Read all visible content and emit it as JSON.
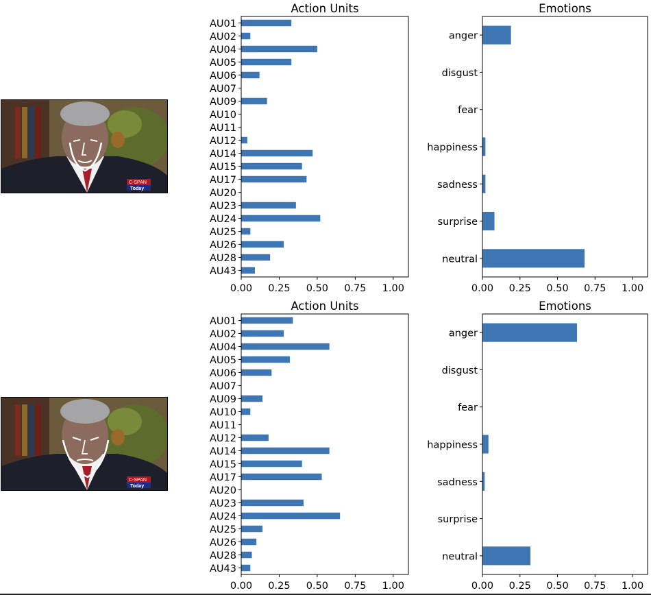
{
  "style": {
    "bar_color": "#3d76b3",
    "axis_color": "#000000"
  },
  "frames": [
    {
      "overlay_text": "C-SPAN",
      "overlay_subtext": "Today"
    },
    {
      "overlay_text": "C-SPAN",
      "overlay_subtext": "Today"
    }
  ],
  "chart_data": [
    {
      "type": "bar",
      "orientation": "horizontal",
      "title": "Action Units",
      "categories": [
        "AU01",
        "AU02",
        "AU04",
        "AU05",
        "AU06",
        "AU07",
        "AU09",
        "AU10",
        "AU11",
        "AU12",
        "AU14",
        "AU15",
        "AU17",
        "AU20",
        "AU23",
        "AU24",
        "AU25",
        "AU26",
        "AU28",
        "AU43"
      ],
      "values": [
        0.33,
        0.06,
        0.5,
        0.33,
        0.12,
        0.0,
        0.17,
        0.0,
        0.0,
        0.04,
        0.47,
        0.4,
        0.43,
        0.0,
        0.36,
        0.52,
        0.06,
        0.28,
        0.19,
        0.09
      ],
      "xlim": [
        0,
        1.1
      ],
      "xticks": [
        "0.00",
        "0.25",
        "0.50",
        "0.75",
        "1.00"
      ],
      "xlabel": "",
      "ylabel": "",
      "grid": false
    },
    {
      "type": "bar",
      "orientation": "horizontal",
      "title": "Emotions",
      "categories": [
        "anger",
        "disgust",
        "fear",
        "happiness",
        "sadness",
        "surprise",
        "neutral"
      ],
      "values": [
        0.19,
        0.0,
        0.0,
        0.02,
        0.02,
        0.08,
        0.68
      ],
      "xlim": [
        0,
        1.1
      ],
      "xticks": [
        "0.00",
        "0.25",
        "0.50",
        "0.75",
        "1.00"
      ],
      "xlabel": "",
      "ylabel": "",
      "grid": false
    },
    {
      "type": "bar",
      "orientation": "horizontal",
      "title": "Action Units",
      "categories": [
        "AU01",
        "AU02",
        "AU04",
        "AU05",
        "AU06",
        "AU07",
        "AU09",
        "AU10",
        "AU11",
        "AU12",
        "AU14",
        "AU15",
        "AU17",
        "AU20",
        "AU23",
        "AU24",
        "AU25",
        "AU26",
        "AU28",
        "AU43"
      ],
      "values": [
        0.34,
        0.28,
        0.58,
        0.32,
        0.2,
        0.0,
        0.14,
        0.06,
        0.0,
        0.18,
        0.58,
        0.4,
        0.53,
        0.0,
        0.41,
        0.65,
        0.14,
        0.1,
        0.07,
        0.06
      ],
      "xlim": [
        0,
        1.1
      ],
      "xticks": [
        "0.00",
        "0.25",
        "0.50",
        "0.75",
        "1.00"
      ],
      "xlabel": "",
      "ylabel": "",
      "grid": false
    },
    {
      "type": "bar",
      "orientation": "horizontal",
      "title": "Emotions",
      "categories": [
        "anger",
        "disgust",
        "fear",
        "happiness",
        "sadness",
        "surprise",
        "neutral"
      ],
      "values": [
        0.63,
        0.0,
        0.0,
        0.04,
        0.015,
        0.0,
        0.32
      ],
      "xlim": [
        0,
        1.1
      ],
      "xticks": [
        "0.00",
        "0.25",
        "0.50",
        "0.75",
        "1.00"
      ],
      "xlabel": "",
      "ylabel": "",
      "grid": false
    }
  ]
}
